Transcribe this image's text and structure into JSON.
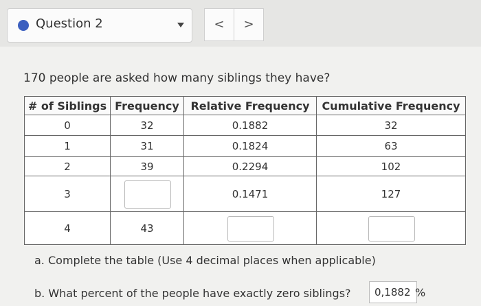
{
  "header": {
    "question_label": "Question 2",
    "prev_button": "<",
    "next_button": ">"
  },
  "question": "170 people are asked how many siblings they have?",
  "table": {
    "columns": [
      "# of Siblings",
      "Frequency",
      "Relative Frequency",
      "Cumulative Frequency"
    ],
    "rows": [
      [
        "0",
        "32",
        "0.1882",
        "32"
      ],
      [
        "1",
        "31",
        "0.1824",
        "63"
      ],
      [
        "2",
        "39",
        "0.2294",
        "102"
      ],
      [
        "3",
        null,
        "0.1471",
        "127"
      ],
      [
        "4",
        "43",
        null,
        null
      ]
    ]
  },
  "parts": {
    "a": "a. Complete the table (Use 4 decimal places when applicable)",
    "b": "b. What percent of the people have exactly zero siblings?",
    "b_answer": "0,1882",
    "b_unit": "%"
  }
}
